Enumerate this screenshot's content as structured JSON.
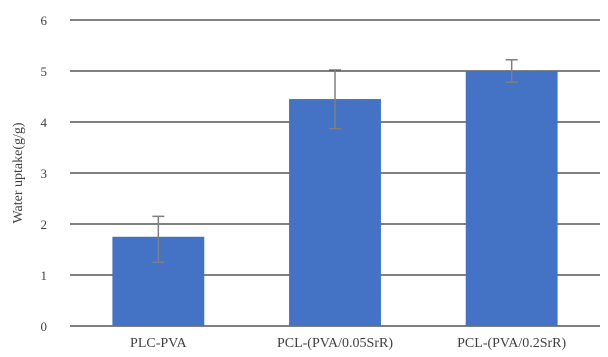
{
  "chart_data": {
    "type": "bar",
    "title": "",
    "xlabel": "",
    "ylabel": "Water uptake(g/g)",
    "categories": [
      "PLC-PVA",
      "PCL-(PVA/0.05SrR)",
      "PCL-(PVA/0.2SrR)"
    ],
    "values": [
      1.75,
      4.45,
      5.0
    ],
    "error_low": [
      1.25,
      3.87,
      4.78
    ],
    "error_high": [
      2.15,
      5.02,
      5.22
    ],
    "ylim": [
      0,
      6
    ],
    "yticks": [
      "0",
      "1",
      "2",
      "3",
      "4",
      "5",
      "6"
    ],
    "grid": true,
    "legend": "none",
    "bar_color": "#4472C4",
    "error_color": "#7f7f7f",
    "grid_color": "#000000"
  }
}
